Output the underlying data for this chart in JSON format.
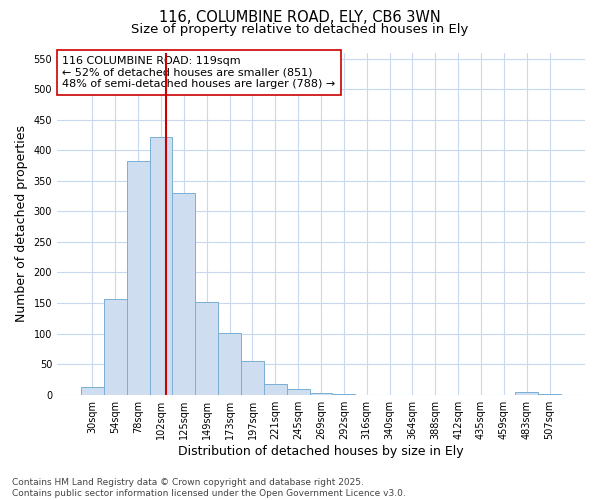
{
  "title_line1": "116, COLUMBINE ROAD, ELY, CB6 3WN",
  "title_line2": "Size of property relative to detached houses in Ely",
  "xlabel": "Distribution of detached houses by size in Ely",
  "ylabel": "Number of detached properties",
  "bar_color": "#cfddf0",
  "bar_edge_color": "#7aafd4",
  "background_color": "#ffffff",
  "plot_bg_color": "#ffffff",
  "grid_color": "#c8d8ee",
  "categories": [
    "30sqm",
    "54sqm",
    "78sqm",
    "102sqm",
    "125sqm",
    "149sqm",
    "173sqm",
    "197sqm",
    "221sqm",
    "245sqm",
    "269sqm",
    "292sqm",
    "316sqm",
    "340sqm",
    "364sqm",
    "388sqm",
    "412sqm",
    "435sqm",
    "459sqm",
    "483sqm",
    "507sqm"
  ],
  "values": [
    12,
    157,
    383,
    422,
    330,
    152,
    101,
    55,
    18,
    10,
    2,
    1,
    0,
    0,
    0,
    0,
    0,
    0,
    0,
    5,
    1
  ],
  "vline_color": "#cc0000",
  "annotation_text": "116 COLUMBINE ROAD: 119sqm\n← 52% of detached houses are smaller (851)\n48% of semi-detached houses are larger (788) →",
  "ylim_max": 560,
  "yticks": [
    0,
    50,
    100,
    150,
    200,
    250,
    300,
    350,
    400,
    450,
    500,
    550
  ],
  "footer_line1": "Contains HM Land Registry data © Crown copyright and database right 2025.",
  "footer_line2": "Contains public sector information licensed under the Open Government Licence v3.0.",
  "title_fontsize": 10.5,
  "subtitle_fontsize": 9.5,
  "axis_label_fontsize": 9,
  "tick_fontsize": 7,
  "annotation_fontsize": 8,
  "footer_fontsize": 6.5
}
